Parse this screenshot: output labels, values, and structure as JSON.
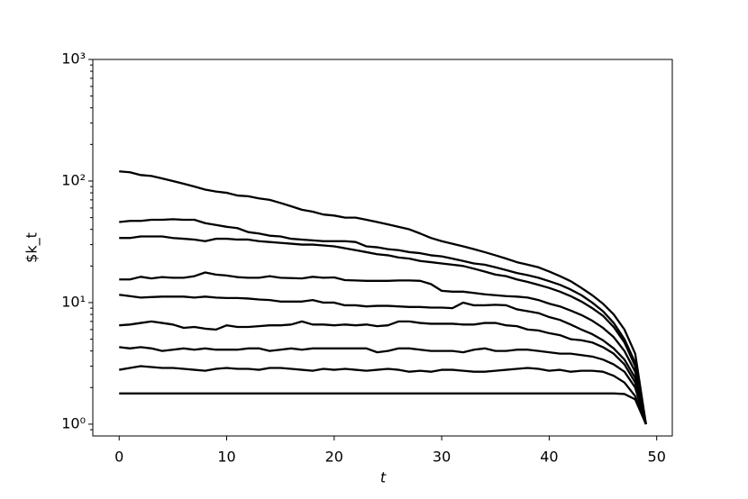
{
  "chart_data": {
    "type": "line",
    "xlabel": "t",
    "ylabel": "$k_t",
    "x": [
      0,
      1,
      2,
      3,
      4,
      5,
      6,
      7,
      8,
      9,
      10,
      11,
      12,
      13,
      14,
      15,
      16,
      17,
      18,
      19,
      20,
      21,
      22,
      23,
      24,
      25,
      26,
      27,
      28,
      29,
      30,
      31,
      32,
      33,
      34,
      35,
      36,
      37,
      38,
      39,
      40,
      41,
      42,
      43,
      44,
      45,
      46,
      47,
      48,
      49
    ],
    "xlim": [
      -2.45,
      51.45
    ],
    "xticks": [
      0,
      10,
      20,
      30,
      40,
      50
    ],
    "ylim": [
      0.8,
      1000
    ],
    "yscale": "log",
    "yticks": [
      {
        "value": 1,
        "label": "10⁰"
      },
      {
        "value": 10,
        "label": "10¹"
      },
      {
        "value": 100,
        "label": "10²"
      },
      {
        "value": 1000,
        "label": "10³"
      }
    ],
    "yminorticks": [
      0.9,
      2,
      3,
      4,
      5,
      6,
      7,
      8,
      9,
      20,
      30,
      40,
      50,
      60,
      70,
      80,
      90,
      200,
      300,
      400,
      500,
      600,
      700,
      800,
      900
    ],
    "series": [
      {
        "color": "#000000",
        "values": [
          1.79,
          1.79,
          1.79,
          1.79,
          1.79,
          1.79,
          1.79,
          1.79,
          1.79,
          1.79,
          1.79,
          1.79,
          1.79,
          1.79,
          1.79,
          1.79,
          1.79,
          1.79,
          1.79,
          1.79,
          1.79,
          1.79,
          1.79,
          1.79,
          1.79,
          1.79,
          1.79,
          1.79,
          1.79,
          1.79,
          1.79,
          1.79,
          1.79,
          1.79,
          1.79,
          1.79,
          1.79,
          1.79,
          1.79,
          1.79,
          1.79,
          1.79,
          1.79,
          1.79,
          1.79,
          1.79,
          1.79,
          1.77,
          1.6,
          1.0
        ]
      },
      {
        "color": "#000000",
        "values": [
          2.8,
          2.9,
          3.0,
          2.95,
          2.9,
          2.9,
          2.85,
          2.8,
          2.75,
          2.85,
          2.9,
          2.85,
          2.85,
          2.8,
          2.9,
          2.9,
          2.85,
          2.8,
          2.75,
          2.85,
          2.8,
          2.85,
          2.8,
          2.75,
          2.8,
          2.85,
          2.8,
          2.7,
          2.75,
          2.7,
          2.8,
          2.8,
          2.75,
          2.7,
          2.7,
          2.75,
          2.8,
          2.85,
          2.9,
          2.85,
          2.75,
          2.8,
          2.7,
          2.75,
          2.75,
          2.7,
          2.5,
          2.2,
          1.7,
          1.0
        ]
      },
      {
        "color": "#000000",
        "values": [
          4.3,
          4.2,
          4.3,
          4.2,
          4.0,
          4.1,
          4.2,
          4.1,
          4.2,
          4.1,
          4.1,
          4.1,
          4.2,
          4.2,
          4.0,
          4.1,
          4.2,
          4.1,
          4.2,
          4.2,
          4.2,
          4.2,
          4.2,
          4.2,
          3.9,
          4.0,
          4.2,
          4.2,
          4.1,
          4.0,
          4.0,
          4.0,
          3.9,
          4.1,
          4.2,
          4.0,
          4.0,
          4.1,
          4.1,
          4.0,
          3.9,
          3.8,
          3.8,
          3.7,
          3.6,
          3.4,
          3.1,
          2.7,
          2.0,
          1.0
        ]
      },
      {
        "color": "#000000",
        "values": [
          6.5,
          6.6,
          6.8,
          7.0,
          6.8,
          6.6,
          6.2,
          6.3,
          6.1,
          6.0,
          6.5,
          6.3,
          6.3,
          6.4,
          6.5,
          6.5,
          6.6,
          7.0,
          6.6,
          6.6,
          6.5,
          6.6,
          6.5,
          6.6,
          6.4,
          6.5,
          7.0,
          7.0,
          6.8,
          6.7,
          6.7,
          6.7,
          6.6,
          6.6,
          6.8,
          6.8,
          6.5,
          6.4,
          6.0,
          5.9,
          5.6,
          5.4,
          5.0,
          4.9,
          4.7,
          4.3,
          3.8,
          3.1,
          2.2,
          1.0
        ]
      },
      {
        "color": "#000000",
        "values": [
          11.6,
          11.3,
          11.0,
          11.1,
          11.2,
          11.2,
          11.2,
          11.0,
          11.2,
          11.0,
          10.9,
          10.9,
          10.8,
          10.6,
          10.5,
          10.2,
          10.2,
          10.2,
          10.5,
          10.0,
          10.0,
          9.5,
          9.5,
          9.3,
          9.4,
          9.4,
          9.3,
          9.2,
          9.2,
          9.1,
          9.1,
          9.0,
          10.0,
          9.5,
          9.5,
          9.6,
          9.5,
          8.8,
          8.5,
          8.2,
          7.6,
          7.2,
          6.6,
          6.0,
          5.5,
          4.9,
          4.2,
          3.4,
          2.4,
          1.0
        ]
      },
      {
        "color": "#000000",
        "values": [
          15.5,
          15.5,
          16.3,
          15.8,
          16.2,
          16.0,
          16.0,
          16.5,
          17.7,
          17.0,
          16.7,
          16.2,
          16.0,
          16.0,
          16.5,
          16.0,
          15.9,
          15.8,
          16.3,
          16.0,
          16.1,
          15.3,
          15.2,
          15.1,
          15.1,
          15.1,
          15.2,
          15.2,
          15.1,
          14.2,
          12.5,
          12.3,
          12.3,
          12.0,
          11.7,
          11.5,
          11.3,
          11.2,
          11.0,
          10.5,
          9.8,
          9.3,
          8.6,
          7.9,
          7.1,
          6.2,
          5.2,
          4.0,
          2.7,
          1.0
        ]
      },
      {
        "color": "#000000",
        "values": [
          34,
          34,
          35,
          35,
          35,
          34,
          33.5,
          33,
          32,
          33.5,
          33.5,
          33,
          33,
          32,
          31.5,
          31,
          30.5,
          30,
          30,
          29.5,
          29,
          28,
          27,
          26,
          25,
          24.5,
          23.5,
          23,
          22,
          21.5,
          21,
          20.5,
          20,
          19,
          18,
          17,
          16.5,
          15.5,
          14.8,
          14,
          13.2,
          12.3,
          11.3,
          10.2,
          9,
          7.8,
          6.3,
          4.7,
          3.0,
          1.0
        ]
      },
      {
        "color": "#000000",
        "values": [
          46,
          47,
          47,
          48,
          48,
          48.5,
          48,
          48,
          45,
          43.5,
          42,
          41,
          38,
          37,
          35.5,
          35,
          33.5,
          33,
          32.5,
          32,
          32,
          32,
          31.5,
          29,
          28.5,
          27.5,
          27,
          26,
          25.5,
          24.5,
          24,
          23,
          22,
          21,
          20.5,
          19.5,
          18.5,
          17.5,
          16.8,
          16,
          15,
          14,
          12.8,
          11.5,
          10,
          8.5,
          6.8,
          5,
          3.2,
          1.0
        ]
      },
      {
        "color": "#000000",
        "values": [
          120,
          118,
          112,
          110,
          105,
          100,
          95,
          90,
          85,
          82,
          80,
          76,
          75,
          72,
          70,
          66,
          62,
          58,
          56,
          53,
          52,
          50,
          50,
          48,
          46,
          44,
          42,
          40,
          37,
          34,
          32,
          30.5,
          29,
          27.5,
          26,
          24.5,
          23,
          21.5,
          20.5,
          19.5,
          18,
          16.5,
          15,
          13.2,
          11.5,
          9.8,
          8,
          6,
          3.8,
          1.0
        ]
      }
    ]
  }
}
